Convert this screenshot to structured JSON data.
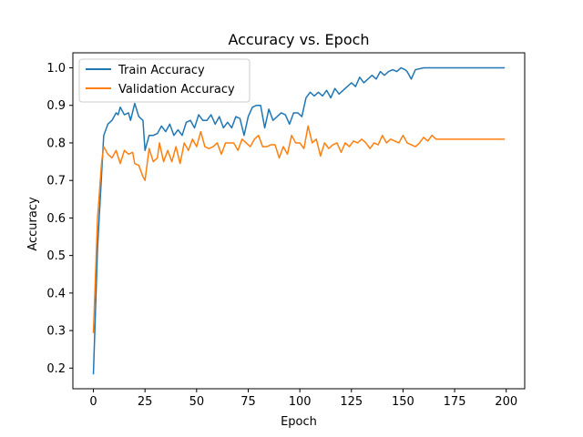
{
  "chart_data": {
    "type": "line",
    "title": "Accuracy vs. Epoch",
    "xlabel": "Epoch",
    "ylabel": "Accuracy",
    "xlim": [
      -9.95,
      208.95
    ],
    "ylim": [
      0.145,
      1.04
    ],
    "xticks": [
      0,
      25,
      50,
      75,
      100,
      125,
      150,
      175,
      200
    ],
    "yticks": [
      0.2,
      0.3,
      0.4,
      0.5,
      0.6,
      0.7,
      0.8,
      0.9,
      1.0
    ],
    "xtick_labels": [
      "0",
      "25",
      "50",
      "75",
      "100",
      "125",
      "150",
      "175",
      "200"
    ],
    "ytick_labels": [
      "0.2",
      "0.3",
      "0.4",
      "0.5",
      "0.6",
      "0.7",
      "0.8",
      "0.9",
      "1.0"
    ],
    "grid": false,
    "legend": {
      "placement": "upper-left"
    },
    "series": [
      {
        "name": "Train Accuracy",
        "color": "#1f77b4",
        "points": [
          [
            0,
            0.185
          ],
          [
            2,
            0.52
          ],
          [
            4,
            0.72
          ],
          [
            5,
            0.82
          ],
          [
            7,
            0.85
          ],
          [
            9,
            0.86
          ],
          [
            11,
            0.88
          ],
          [
            12,
            0.875
          ],
          [
            13,
            0.895
          ],
          [
            15,
            0.875
          ],
          [
            17,
            0.88
          ],
          [
            18,
            0.86
          ],
          [
            20,
            0.905
          ],
          [
            22,
            0.87
          ],
          [
            24,
            0.86
          ],
          [
            25,
            0.78
          ],
          [
            27,
            0.82
          ],
          [
            29,
            0.82
          ],
          [
            31,
            0.825
          ],
          [
            33,
            0.845
          ],
          [
            35,
            0.83
          ],
          [
            37,
            0.85
          ],
          [
            39,
            0.82
          ],
          [
            41,
            0.835
          ],
          [
            43,
            0.82
          ],
          [
            45,
            0.855
          ],
          [
            47,
            0.86
          ],
          [
            49,
            0.84
          ],
          [
            51,
            0.875
          ],
          [
            53,
            0.86
          ],
          [
            55,
            0.86
          ],
          [
            57,
            0.875
          ],
          [
            59,
            0.85
          ],
          [
            61,
            0.87
          ],
          [
            63,
            0.84
          ],
          [
            65,
            0.855
          ],
          [
            67,
            0.84
          ],
          [
            69,
            0.87
          ],
          [
            71,
            0.865
          ],
          [
            73,
            0.82
          ],
          [
            75,
            0.87
          ],
          [
            77,
            0.895
          ],
          [
            79,
            0.9
          ],
          [
            81,
            0.9
          ],
          [
            83,
            0.84
          ],
          [
            85,
            0.89
          ],
          [
            87,
            0.86
          ],
          [
            89,
            0.87
          ],
          [
            91,
            0.88
          ],
          [
            93,
            0.875
          ],
          [
            95,
            0.85
          ],
          [
            97,
            0.88
          ],
          [
            99,
            0.88
          ],
          [
            101,
            0.87
          ],
          [
            103,
            0.92
          ],
          [
            105,
            0.935
          ],
          [
            107,
            0.925
          ],
          [
            109,
            0.935
          ],
          [
            111,
            0.925
          ],
          [
            113,
            0.94
          ],
          [
            115,
            0.92
          ],
          [
            117,
            0.945
          ],
          [
            119,
            0.93
          ],
          [
            121,
            0.94
          ],
          [
            123,
            0.95
          ],
          [
            125,
            0.96
          ],
          [
            127,
            0.95
          ],
          [
            129,
            0.975
          ],
          [
            131,
            0.96
          ],
          [
            133,
            0.97
          ],
          [
            135,
            0.98
          ],
          [
            137,
            0.97
          ],
          [
            139,
            0.99
          ],
          [
            141,
            0.98
          ],
          [
            143,
            0.99
          ],
          [
            145,
            0.995
          ],
          [
            147,
            0.99
          ],
          [
            149,
            1.0
          ],
          [
            151,
            0.995
          ],
          [
            152,
            0.99
          ],
          [
            154,
            0.97
          ],
          [
            156,
            0.995
          ],
          [
            160,
            1.0
          ],
          [
            199,
            1.0
          ]
        ]
      },
      {
        "name": "Validation Accuracy",
        "color": "#ff7f0e",
        "points": [
          [
            0,
            0.295
          ],
          [
            2,
            0.6
          ],
          [
            4,
            0.75
          ],
          [
            5,
            0.79
          ],
          [
            7,
            0.77
          ],
          [
            9,
            0.76
          ],
          [
            11,
            0.78
          ],
          [
            13,
            0.745
          ],
          [
            15,
            0.78
          ],
          [
            17,
            0.77
          ],
          [
            19,
            0.775
          ],
          [
            20,
            0.745
          ],
          [
            22,
            0.74
          ],
          [
            24,
            0.71
          ],
          [
            25,
            0.7
          ],
          [
            27,
            0.785
          ],
          [
            29,
            0.75
          ],
          [
            31,
            0.76
          ],
          [
            32,
            0.8
          ],
          [
            34,
            0.75
          ],
          [
            36,
            0.78
          ],
          [
            38,
            0.75
          ],
          [
            40,
            0.79
          ],
          [
            42,
            0.745
          ],
          [
            44,
            0.8
          ],
          [
            46,
            0.78
          ],
          [
            48,
            0.81
          ],
          [
            50,
            0.79
          ],
          [
            52,
            0.83
          ],
          [
            54,
            0.79
          ],
          [
            56,
            0.785
          ],
          [
            58,
            0.79
          ],
          [
            60,
            0.8
          ],
          [
            62,
            0.77
          ],
          [
            64,
            0.8
          ],
          [
            66,
            0.8
          ],
          [
            68,
            0.8
          ],
          [
            70,
            0.78
          ],
          [
            72,
            0.81
          ],
          [
            74,
            0.8
          ],
          [
            76,
            0.79
          ],
          [
            78,
            0.81
          ],
          [
            80,
            0.82
          ],
          [
            82,
            0.79
          ],
          [
            84,
            0.79
          ],
          [
            86,
            0.795
          ],
          [
            88,
            0.795
          ],
          [
            90,
            0.76
          ],
          [
            92,
            0.79
          ],
          [
            94,
            0.77
          ],
          [
            96,
            0.82
          ],
          [
            98,
            0.8
          ],
          [
            100,
            0.8
          ],
          [
            102,
            0.785
          ],
          [
            104,
            0.845
          ],
          [
            106,
            0.8
          ],
          [
            108,
            0.81
          ],
          [
            110,
            0.765
          ],
          [
            112,
            0.8
          ],
          [
            114,
            0.785
          ],
          [
            116,
            0.795
          ],
          [
            118,
            0.8
          ],
          [
            120,
            0.775
          ],
          [
            122,
            0.8
          ],
          [
            124,
            0.79
          ],
          [
            126,
            0.805
          ],
          [
            128,
            0.8
          ],
          [
            130,
            0.81
          ],
          [
            132,
            0.8
          ],
          [
            134,
            0.785
          ],
          [
            136,
            0.8
          ],
          [
            138,
            0.795
          ],
          [
            140,
            0.82
          ],
          [
            142,
            0.8
          ],
          [
            144,
            0.81
          ],
          [
            146,
            0.805
          ],
          [
            148,
            0.8
          ],
          [
            150,
            0.82
          ],
          [
            152,
            0.8
          ],
          [
            154,
            0.795
          ],
          [
            156,
            0.79
          ],
          [
            158,
            0.8
          ],
          [
            160,
            0.815
          ],
          [
            162,
            0.805
          ],
          [
            164,
            0.82
          ],
          [
            166,
            0.81
          ],
          [
            168,
            0.81
          ],
          [
            170,
            0.81
          ],
          [
            180,
            0.81
          ],
          [
            199,
            0.81
          ]
        ]
      }
    ]
  }
}
